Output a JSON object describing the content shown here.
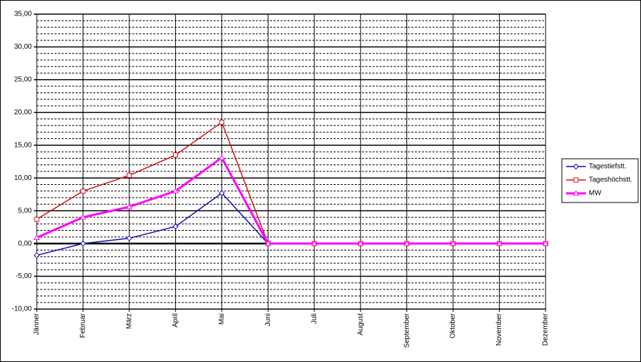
{
  "chart_data": {
    "type": "line",
    "categories": [
      "Jänner",
      "Februar",
      "März",
      "April",
      "Mai",
      "Juni",
      "Juli",
      "August",
      "September",
      "Oktober",
      "November",
      "Dezember"
    ],
    "series": [
      {
        "name": "Tagestiefstt.",
        "color": "#0a0ab4",
        "marker": "diamond",
        "values": [
          -1.8,
          0,
          0.8,
          2.6,
          7.7,
          0,
          0,
          0,
          0,
          0,
          0,
          0
        ]
      },
      {
        "name": "Tageshöchstt.",
        "color": "#d41010",
        "marker": "square",
        "values": [
          3.7,
          8.0,
          10.4,
          13.5,
          18.5,
          0,
          0,
          0,
          0,
          0,
          0,
          0
        ]
      },
      {
        "name": "MW",
        "color": "#ff00ff",
        "marker": "triangle",
        "values": [
          0.9,
          4.0,
          5.6,
          8.0,
          13.1,
          0,
          0,
          0,
          0,
          0,
          0,
          0
        ]
      }
    ],
    "ylim": [
      -10,
      35
    ],
    "yticks": [
      {
        "value": -10,
        "label": "-10,00"
      },
      {
        "value": -5,
        "label": "-5,00"
      },
      {
        "value": 0,
        "label": "0,00"
      },
      {
        "value": 5,
        "label": "5,00"
      },
      {
        "value": 10,
        "label": "10,00"
      },
      {
        "value": 15,
        "label": "15,00"
      },
      {
        "value": 20,
        "label": "20,00"
      },
      {
        "value": 25,
        "label": "25,00"
      },
      {
        "value": 30,
        "label": "30,00"
      },
      {
        "value": 35,
        "label": "35,00"
      }
    ],
    "grid": true,
    "minor_grid": true,
    "legend": "right"
  }
}
